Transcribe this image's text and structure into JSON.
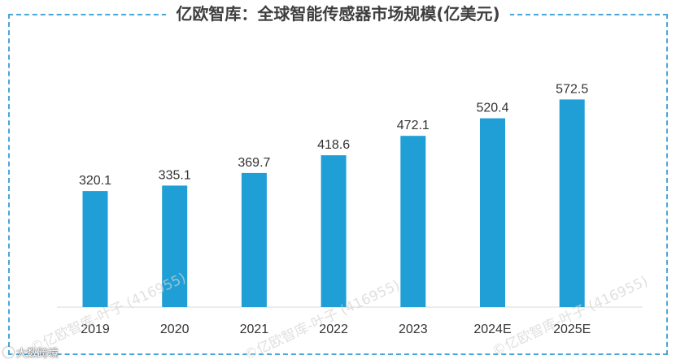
{
  "chart_data": {
    "type": "bar",
    "title": "亿欧智库：全球智能传感器市场规模(亿美元)",
    "categories": [
      "2019",
      "2020",
      "2021",
      "2022",
      "2023",
      "2024E",
      "2025E"
    ],
    "values": [
      320.1,
      335.1,
      369.7,
      418.6,
      472.1,
      520.4,
      572.5
    ],
    "data_labels": [
      "320.1",
      "335.1",
      "369.7",
      "418.6",
      "472.1",
      "520.4",
      "572.5"
    ],
    "xlabel": "",
    "ylabel": "",
    "ylim": [
      0,
      620
    ],
    "grid": false,
    "legend": "none",
    "bar_color": "#1f9fd5",
    "frame_color": "#4aa6d8"
  },
  "watermark": {
    "text_1": "©亿欧智库-叶子 (416955)",
    "text_2": "©亿欧智库-叶子 (416955)",
    "text_3": "©亿欧智库-叶子 (416955)"
  },
  "source": {
    "label": "大数跨境"
  }
}
